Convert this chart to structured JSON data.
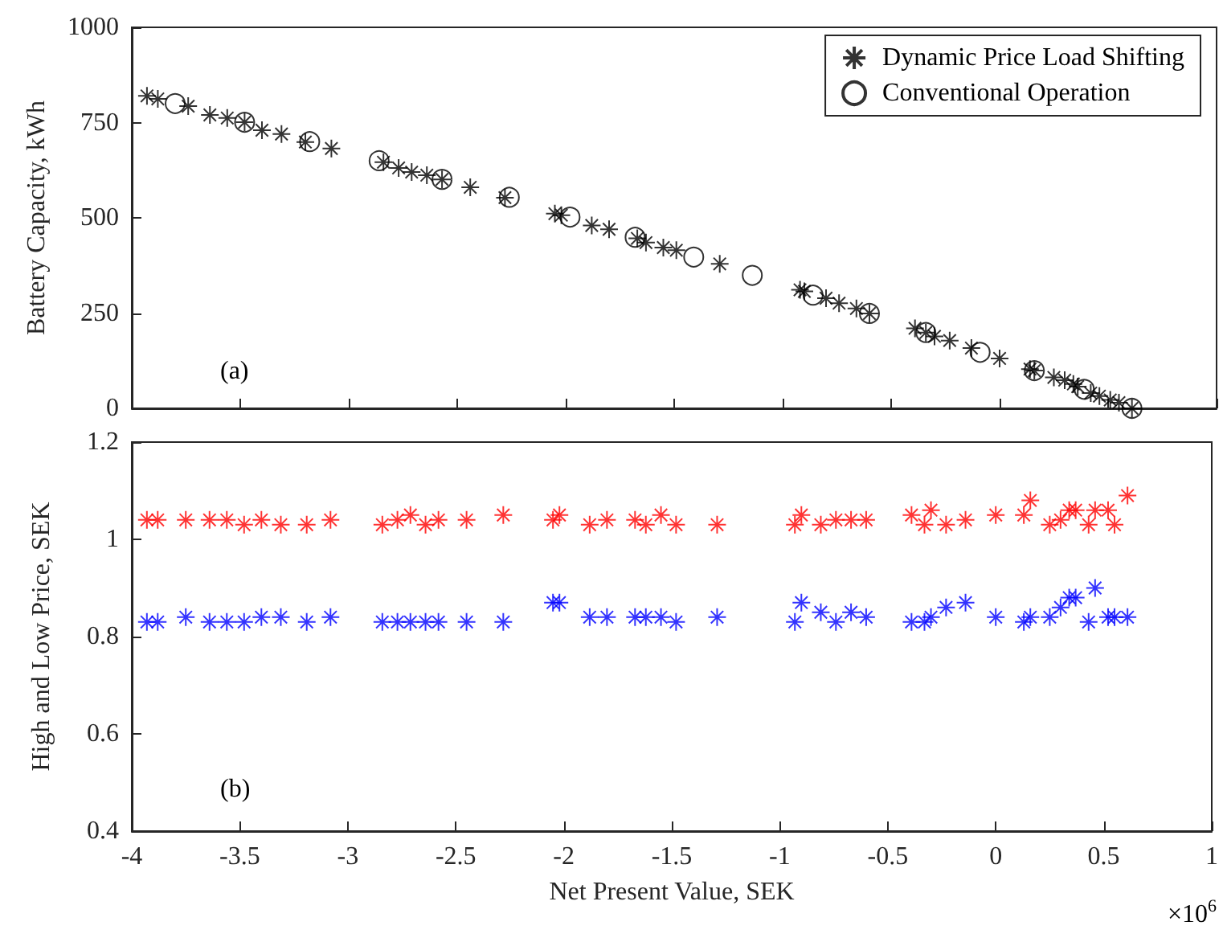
{
  "chart_data": [
    {
      "type": "scatter",
      "ylabel": "Battery Capacity, kWh",
      "annotations": [
        "(a)"
      ],
      "xlim": [
        -4,
        1
      ],
      "xticks": [
        -4,
        -3.5,
        -3,
        -2.5,
        -2,
        -1.5,
        -1,
        -0.5,
        0,
        0.5,
        1
      ],
      "ylim": [
        0,
        1000
      ],
      "yticks": [
        0,
        250,
        500,
        750,
        1000
      ],
      "tick_labels": "y",
      "grid": false,
      "legend": "top right",
      "series": [
        {
          "name": "Dynamic Price Load Shifting",
          "color": "#000000",
          "marker": "cross",
          "x": [
            -3.93,
            -3.88,
            -3.74,
            -3.64,
            -3.56,
            -3.48,
            -3.4,
            -3.31,
            -3.2,
            -3.08,
            -2.84,
            -2.77,
            -2.71,
            -2.64,
            -2.57,
            -2.44,
            -2.28,
            -2.05,
            -2.02,
            -1.88,
            -1.8,
            -1.67,
            -1.63,
            -1.55,
            -1.49,
            -1.29,
            -0.92,
            -0.9,
            -0.8,
            -0.74,
            -0.66,
            -0.6,
            -0.39,
            -0.34,
            -0.3,
            -0.23,
            -0.13,
            0.0,
            0.14,
            0.16,
            0.25,
            0.3,
            0.34,
            0.36,
            0.42,
            0.46,
            0.51,
            0.55,
            0.61
          ],
          "values": [
            820,
            812,
            793,
            770,
            762,
            751,
            730,
            720,
            699,
            682,
            646,
            631,
            620,
            612,
            601,
            580,
            553,
            511,
            507,
            480,
            470,
            446,
            435,
            422,
            415,
            379,
            311,
            307,
            289,
            276,
            262,
            249,
            210,
            199,
            189,
            178,
            158,
            131,
            103,
            99,
            81,
            74,
            64,
            57,
            40,
            32,
            22,
            15,
            0
          ]
        },
        {
          "name": "Conventional Operation",
          "color": "#000000",
          "marker": "circle",
          "x": [
            -3.8,
            -3.48,
            -3.18,
            -2.86,
            -2.57,
            -2.26,
            -1.98,
            -1.68,
            -1.41,
            -1.14,
            -0.86,
            -0.6,
            -0.34,
            -0.09,
            0.16,
            0.39,
            0.61
          ],
          "values": [
            800,
            751,
            700,
            650,
            601,
            554,
            502,
            449,
            397,
            349,
            297,
            249,
            199,
            147,
            99,
            50,
            0
          ]
        }
      ]
    },
    {
      "type": "scatter",
      "xlabel": "Net Present Value, SEK",
      "ylabel": "High and Low Price, SEK",
      "annotations": [
        "(b)",
        "×10$^{6}$"
      ],
      "xlim": [
        -4,
        1
      ],
      "xticks": [
        -4,
        -3.5,
        -3,
        -2.5,
        -2,
        -1.5,
        -1,
        -0.5,
        0,
        0.5,
        1
      ],
      "ylim": [
        0.4,
        1.2
      ],
      "yticks": [
        0.4,
        0.6,
        0.8,
        1,
        1.2
      ],
      "grid": false,
      "series": [
        {
          "color": "#ff0000",
          "marker": "cross",
          "x": [
            -3.93,
            -3.88,
            -3.75,
            -3.64,
            -3.56,
            -3.48,
            -3.4,
            -3.31,
            -3.19,
            -3.08,
            -2.84,
            -2.77,
            -2.71,
            -2.64,
            -2.58,
            -2.45,
            -2.28,
            -2.05,
            -2.02,
            -1.88,
            -1.8,
            -1.67,
            -1.62,
            -1.55,
            -1.48,
            -1.29,
            -0.93,
            -0.9,
            -0.81,
            -0.74,
            -0.67,
            -0.6,
            -0.39,
            -0.33,
            -0.3,
            -0.23,
            -0.14,
            0.0,
            0.13,
            0.16,
            0.25,
            0.3,
            0.34,
            0.37,
            0.43,
            0.46,
            0.52,
            0.55,
            0.61
          ],
          "values": [
            1.04,
            1.04,
            1.04,
            1.04,
            1.04,
            1.03,
            1.04,
            1.03,
            1.03,
            1.04,
            1.03,
            1.04,
            1.05,
            1.03,
            1.04,
            1.04,
            1.05,
            1.04,
            1.05,
            1.03,
            1.04,
            1.04,
            1.03,
            1.05,
            1.03,
            1.03,
            1.03,
            1.05,
            1.03,
            1.04,
            1.04,
            1.04,
            1.05,
            1.03,
            1.06,
            1.03,
            1.04,
            1.05,
            1.05,
            1.08,
            1.03,
            1.04,
            1.06,
            1.06,
            1.03,
            1.06,
            1.06,
            1.03,
            1.09
          ]
        },
        {
          "color": "#0000ff",
          "marker": "cross",
          "x": [
            -3.93,
            -3.88,
            -3.75,
            -3.64,
            -3.56,
            -3.48,
            -3.4,
            -3.31,
            -3.19,
            -3.08,
            -2.84,
            -2.77,
            -2.71,
            -2.64,
            -2.58,
            -2.45,
            -2.28,
            -2.05,
            -2.02,
            -1.88,
            -1.8,
            -1.67,
            -1.62,
            -1.55,
            -1.48,
            -1.29,
            -0.93,
            -0.9,
            -0.81,
            -0.74,
            -0.67,
            -0.6,
            -0.39,
            -0.33,
            -0.3,
            -0.23,
            -0.14,
            0.0,
            0.13,
            0.16,
            0.25,
            0.3,
            0.34,
            0.37,
            0.43,
            0.46,
            0.52,
            0.55,
            0.61
          ],
          "values": [
            0.83,
            0.83,
            0.84,
            0.83,
            0.83,
            0.83,
            0.84,
            0.84,
            0.83,
            0.84,
            0.83,
            0.83,
            0.83,
            0.83,
            0.83,
            0.83,
            0.83,
            0.87,
            0.87,
            0.84,
            0.84,
            0.84,
            0.84,
            0.84,
            0.83,
            0.84,
            0.83,
            0.87,
            0.85,
            0.83,
            0.85,
            0.84,
            0.83,
            0.83,
            0.84,
            0.86,
            0.87,
            0.84,
            0.83,
            0.84,
            0.84,
            0.86,
            0.88,
            0.88,
            0.83,
            0.9,
            0.84,
            0.84,
            0.84
          ]
        }
      ]
    }
  ]
}
